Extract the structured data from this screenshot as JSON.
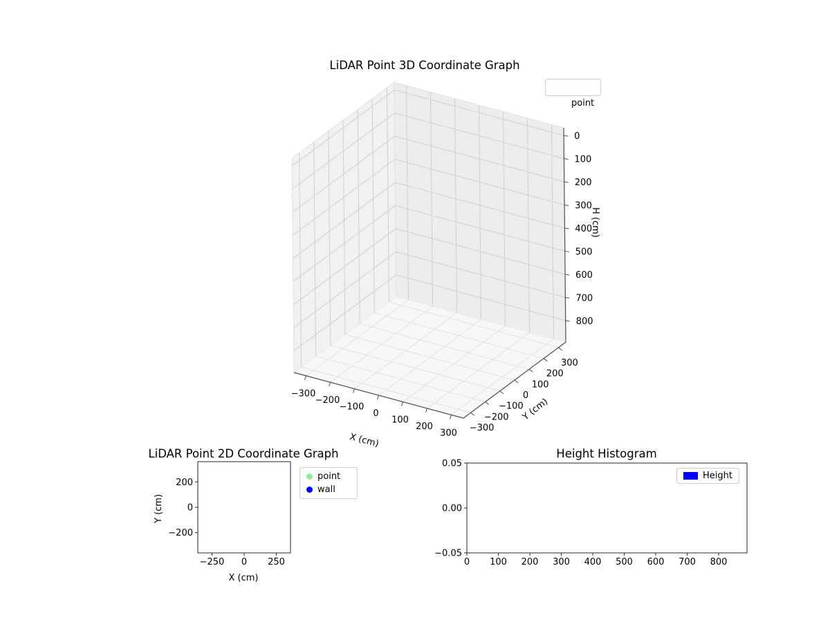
{
  "figure": {
    "background": "#ffffff",
    "text_color": "#000000"
  },
  "chart_data": [
    {
      "id": "lidar-3d",
      "type": "scatter",
      "projection": "3d",
      "title": "LiDAR Point 3D Coordinate Graph",
      "xlabel": "X (cm)",
      "ylabel": "Y (cm)",
      "zlabel": "H (cm)",
      "xticks": [
        -300,
        -200,
        -100,
        0,
        100,
        200,
        300
      ],
      "yticks": [
        -300,
        -200,
        -100,
        0,
        100,
        200,
        300
      ],
      "zticks": [
        0,
        100,
        200,
        300,
        400,
        500,
        600,
        700,
        800
      ],
      "xlim": [
        -350,
        350
      ],
      "ylim": [
        -350,
        350
      ],
      "zlim": [
        -33,
        893
      ],
      "zaxis_inverted": true,
      "grid": true,
      "pane_color": "#f1f1f1",
      "legend": {
        "position": "upper right",
        "entries": [
          {
            "label": "point",
            "marker": "none"
          }
        ]
      },
      "series": [
        {
          "name": "point",
          "points": []
        }
      ]
    },
    {
      "id": "lidar-2d",
      "type": "scatter",
      "title": "LiDAR Point 2D Coordinate Graph",
      "xlabel": "X (cm)",
      "ylabel": "Y (cm)",
      "xticks": [
        -250,
        0,
        250
      ],
      "yticks": [
        200,
        0,
        -200
      ],
      "xlim": [
        -360,
        360
      ],
      "ylim": [
        -360,
        360
      ],
      "grid": false,
      "legend": {
        "position": "outside right",
        "entries": [
          {
            "label": "point",
            "color": "#90EE90",
            "marker": "circle"
          },
          {
            "label": "wall",
            "color": "#0000FF",
            "marker": "circle"
          }
        ]
      },
      "series": [
        {
          "name": "point",
          "color": "#90EE90",
          "points": []
        },
        {
          "name": "wall",
          "color": "#0000FF",
          "points": []
        }
      ]
    },
    {
      "id": "height-histogram",
      "type": "bar",
      "title": "Height Histogram",
      "xlabel": "",
      "ylabel": "",
      "xticks": [
        0,
        100,
        200,
        300,
        400,
        500,
        600,
        700,
        800
      ],
      "yticks": [
        0.05,
        0,
        -0.05
      ],
      "ytick_labels": [
        "0.05",
        "0.00",
        "−0.05"
      ],
      "xlim": [
        0,
        890
      ],
      "ylim": [
        -0.05,
        0.05
      ],
      "grid": false,
      "legend": {
        "position": "upper right",
        "entries": [
          {
            "label": "Height",
            "color": "#0000FF",
            "marker": "rect"
          }
        ]
      },
      "series": [
        {
          "name": "Height",
          "color": "#0000FF",
          "values": []
        }
      ]
    }
  ]
}
